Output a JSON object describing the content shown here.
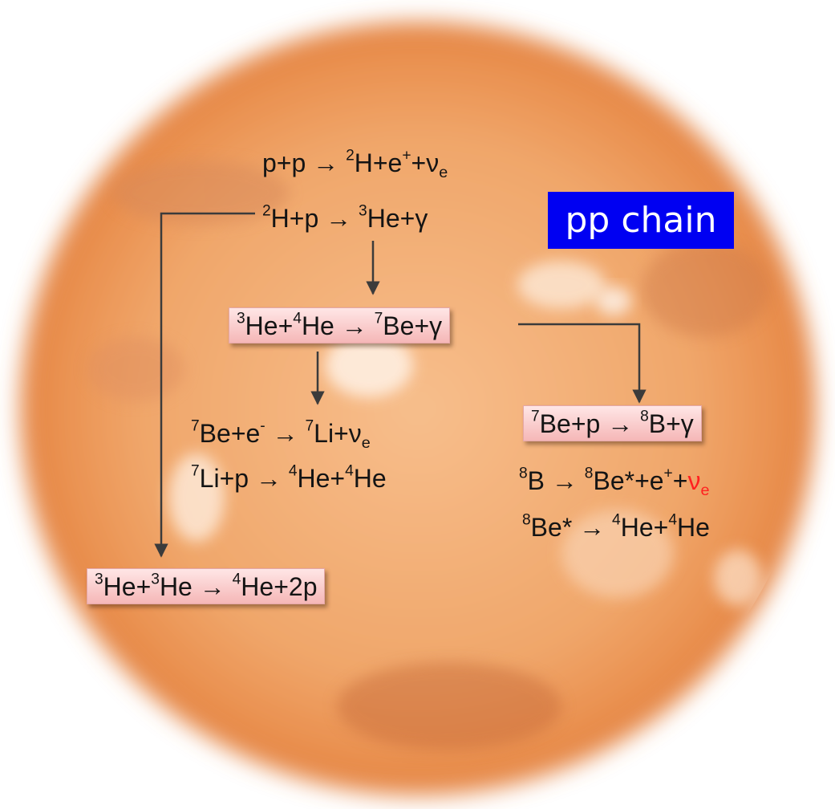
{
  "title": "pp chain",
  "colors": {
    "title_bg": "#0000f2",
    "box_fill": "#f8c8c8",
    "neutrino_highlight": "#ff2020",
    "arrow": "#3b3b3b"
  },
  "reactions": [
    {
      "id": "r1",
      "parts": [
        {
          "t": "p+p ",
          "k": "n"
        },
        {
          "t": "→",
          "k": "arrow"
        },
        {
          "t": " ",
          "k": "n"
        },
        {
          "t": "2",
          "k": "sup"
        },
        {
          "t": "H+e",
          "k": "n"
        },
        {
          "t": "+",
          "k": "sup"
        },
        {
          "t": "+ν",
          "k": "n"
        },
        {
          "t": "e",
          "k": "sub"
        }
      ]
    },
    {
      "id": "r2",
      "parts": [
        {
          "t": "2",
          "k": "sup"
        },
        {
          "t": "H+p ",
          "k": "n"
        },
        {
          "t": "→",
          "k": "arrow"
        },
        {
          "t": " ",
          "k": "n"
        },
        {
          "t": "3",
          "k": "sup"
        },
        {
          "t": "He+γ",
          "k": "n"
        }
      ]
    },
    {
      "id": "r3",
      "parts": [
        {
          "t": "3",
          "k": "sup"
        },
        {
          "t": "He+",
          "k": "n"
        },
        {
          "t": "4",
          "k": "sup"
        },
        {
          "t": "He ",
          "k": "n"
        },
        {
          "t": "→",
          "k": "arrow"
        },
        {
          "t": " ",
          "k": "n"
        },
        {
          "t": "7",
          "k": "sup"
        },
        {
          "t": "Be+γ",
          "k": "n"
        }
      ]
    },
    {
      "id": "r4",
      "parts": [
        {
          "t": "7",
          "k": "sup"
        },
        {
          "t": "Be+e",
          "k": "n"
        },
        {
          "t": "-",
          "k": "sup"
        },
        {
          "t": " ",
          "k": "n"
        },
        {
          "t": "→",
          "k": "arrow"
        },
        {
          "t": " ",
          "k": "n"
        },
        {
          "t": "7",
          "k": "sup"
        },
        {
          "t": "Li+ν",
          "k": "n"
        },
        {
          "t": "e",
          "k": "sub"
        }
      ]
    },
    {
      "id": "r5",
      "parts": [
        {
          "t": "7",
          "k": "sup"
        },
        {
          "t": "Li+p ",
          "k": "n"
        },
        {
          "t": "→",
          "k": "arrow"
        },
        {
          "t": " ",
          "k": "n"
        },
        {
          "t": "4",
          "k": "sup"
        },
        {
          "t": "He+",
          "k": "n"
        },
        {
          "t": "4",
          "k": "sup"
        },
        {
          "t": "He",
          "k": "n"
        }
      ]
    },
    {
      "id": "r6",
      "parts": [
        {
          "t": "7",
          "k": "sup"
        },
        {
          "t": "Be+p ",
          "k": "n"
        },
        {
          "t": "→",
          "k": "arrow"
        },
        {
          "t": " ",
          "k": "n"
        },
        {
          "t": "8",
          "k": "sup"
        },
        {
          "t": "B+γ",
          "k": "n"
        }
      ]
    },
    {
      "id": "r7",
      "parts": [
        {
          "t": "8",
          "k": "sup"
        },
        {
          "t": "B ",
          "k": "n"
        },
        {
          "t": "→",
          "k": "arrow"
        },
        {
          "t": " ",
          "k": "n"
        },
        {
          "t": "8",
          "k": "sup"
        },
        {
          "t": "Be*+e",
          "k": "n"
        },
        {
          "t": "+",
          "k": "sup"
        },
        {
          "t": "+",
          "k": "n"
        },
        {
          "t": "ν",
          "k": "n-red"
        },
        {
          "t": "e",
          "k": "sub-red"
        }
      ]
    },
    {
      "id": "r8",
      "parts": [
        {
          "t": "8",
          "k": "sup"
        },
        {
          "t": "Be* ",
          "k": "n"
        },
        {
          "t": "→",
          "k": "arrow"
        },
        {
          "t": " ",
          "k": "n"
        },
        {
          "t": "4",
          "k": "sup"
        },
        {
          "t": "He+",
          "k": "n"
        },
        {
          "t": "4",
          "k": "sup"
        },
        {
          "t": "He",
          "k": "n"
        }
      ]
    },
    {
      "id": "r9",
      "parts": [
        {
          "t": "3",
          "k": "sup"
        },
        {
          "t": "He+",
          "k": "n"
        },
        {
          "t": "3",
          "k": "sup"
        },
        {
          "t": "He ",
          "k": "n"
        },
        {
          "t": "→",
          "k": "arrow"
        },
        {
          "t": " ",
          "k": "n"
        },
        {
          "t": "4",
          "k": "sup"
        },
        {
          "t": "He+2p",
          "k": "n"
        }
      ]
    }
  ]
}
